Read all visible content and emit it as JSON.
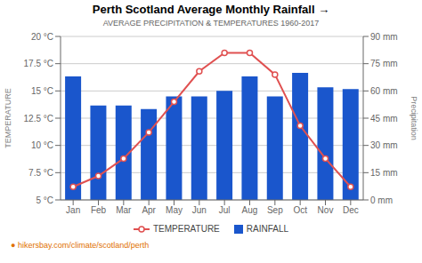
{
  "chart_data": {
    "type": "bar",
    "title": "Perth Scotland Average Monthly Rainfall →",
    "subtitle": "AVERAGE PRECIPITATION & TEMPERATURES 1960-2017",
    "categories": [
      "Jan",
      "Feb",
      "Mar",
      "Apr",
      "May",
      "Jun",
      "Jul",
      "Aug",
      "Sep",
      "Oct",
      "Nov",
      "Dec"
    ],
    "series": [
      {
        "name": "TEMPERATURE",
        "type": "line",
        "color": "#e05050",
        "marker": "circle",
        "values": [
          6.2,
          7.2,
          8.8,
          11.2,
          14.0,
          16.8,
          18.5,
          18.5,
          16.5,
          11.8,
          8.8,
          6.2
        ]
      },
      {
        "name": "RAINFALL",
        "type": "bar",
        "color": "#1a56cc",
        "axis": "y2",
        "values": [
          68,
          52,
          52,
          50,
          57,
          57,
          60,
          68,
          57,
          70,
          62,
          61
        ]
      }
    ],
    "ylabel": "TEMPERATURE",
    "y2label": "Precipitation",
    "ylim": [
      5,
      20
    ],
    "yticks": [
      {
        "value": 5,
        "label": "5 °C"
      },
      {
        "value": 7.5,
        "label": "7.5 °C"
      },
      {
        "value": 10,
        "label": "10 °C"
      },
      {
        "value": 12.5,
        "label": "12.5 °C"
      },
      {
        "value": 15,
        "label": "15 °C"
      },
      {
        "value": 17.5,
        "label": "17.5 °C"
      },
      {
        "value": 20,
        "label": "20 °C"
      }
    ],
    "y2lim": [
      0,
      90
    ],
    "y2ticks": [
      {
        "value": 0,
        "label": "0 mm"
      },
      {
        "value": 15,
        "label": "15 mm"
      },
      {
        "value": 30,
        "label": "30 mm"
      },
      {
        "value": 45,
        "label": "45 mm"
      },
      {
        "value": 60,
        "label": "60 mm"
      },
      {
        "value": 75,
        "label": "75 mm"
      },
      {
        "value": 90,
        "label": "90 mm"
      }
    ],
    "grid": true,
    "legend": "bottom",
    "annotation": "● hikersbay.com/climate/scotland/perth"
  }
}
